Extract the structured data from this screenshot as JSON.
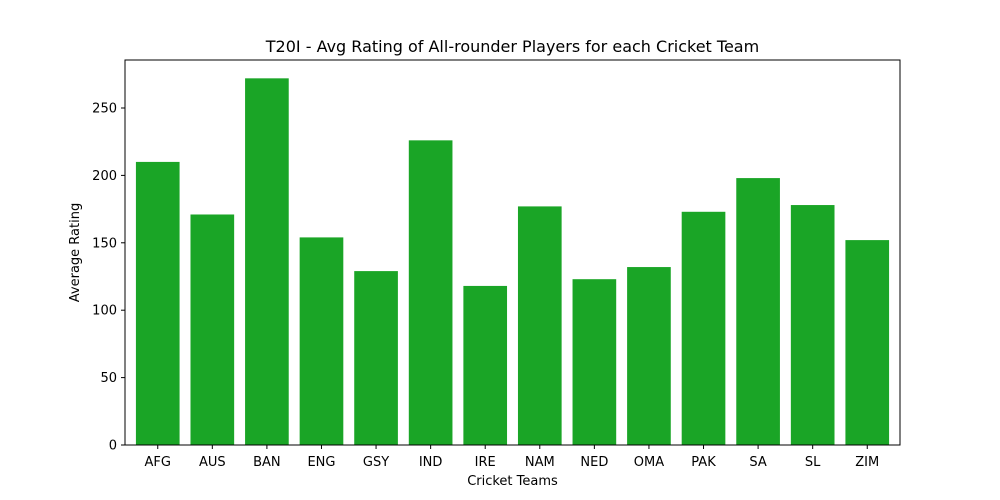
{
  "chart_data": {
    "type": "bar",
    "title": "T20I - Avg Rating of All-rounder Players for each Cricket Team",
    "xlabel": "Cricket Teams",
    "ylabel": "Average Rating",
    "categories": [
      "AFG",
      "AUS",
      "BAN",
      "ENG",
      "GSY",
      "IND",
      "IRE",
      "NAM",
      "NED",
      "OMA",
      "PAK",
      "SA",
      "SL",
      "ZIM"
    ],
    "values": [
      210,
      171,
      272,
      154,
      129,
      226,
      118,
      177,
      123,
      132,
      173,
      198,
      178,
      152
    ],
    "ylim": [
      0,
      285.6
    ],
    "yticks": [
      0,
      50,
      100,
      150,
      200,
      250
    ],
    "bar_color": "#1aa526",
    "grid": false,
    "legend": "none"
  }
}
